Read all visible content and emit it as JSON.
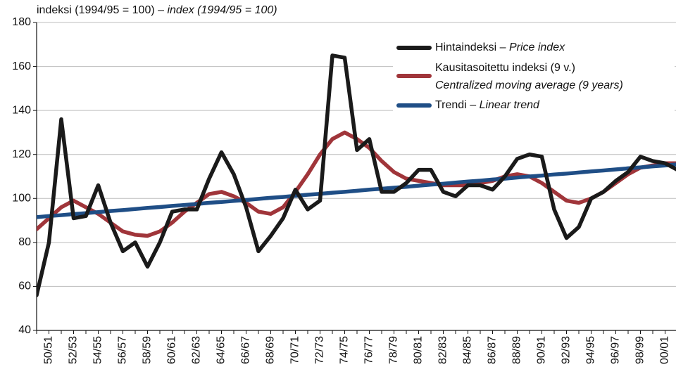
{
  "chart_data": {
    "type": "line",
    "y_label": "indeksi (1994/95 = 100) –",
    "y_label_en": "index (1994/95 = 100)",
    "categories": [
      null,
      "50/51",
      null,
      "52/53",
      null,
      "54/55",
      null,
      "56/57",
      null,
      "58/59",
      null,
      "60/61",
      null,
      "62/63",
      null,
      "64/65",
      null,
      "66/67",
      null,
      "68/69",
      null,
      "70/71",
      null,
      "72/73",
      null,
      "74/75",
      null,
      "76/77",
      null,
      "78/79",
      null,
      "80/81",
      null,
      "82/83",
      null,
      "84/85",
      null,
      "86/87",
      null,
      "88/89",
      null,
      "90/91",
      null,
      "92/93",
      null,
      "94/95",
      null,
      "96/97",
      null,
      "98/99",
      null,
      "00/01",
      null
    ],
    "series": [
      {
        "name": "Hintaindeksi –",
        "name_en": "Price index",
        "color": "#1a1a1a",
        "values": [
          56,
          80,
          136,
          91,
          92,
          106,
          89,
          76,
          80,
          69,
          80,
          94,
          95,
          95,
          109,
          121,
          111,
          96,
          76,
          83,
          91,
          104,
          95,
          99,
          165,
          164,
          122,
          127,
          103,
          103,
          107,
          113,
          113,
          103,
          101,
          106,
          106,
          104,
          110,
          118,
          120,
          119,
          95,
          82,
          87,
          100,
          103,
          108,
          112,
          119,
          117,
          116,
          113
        ]
      },
      {
        "name": "Kausitasoitettu indeksi (9 v.)",
        "name_en": "Centralized moving average (9 years)",
        "color": "#a0353a",
        "values": [
          86,
          91,
          96,
          99,
          96,
          93,
          89,
          85,
          83.5,
          83,
          85,
          89,
          94,
          98,
          102,
          103,
          101,
          98,
          94,
          93,
          96,
          103,
          111,
          120,
          127,
          130,
          127,
          123,
          117,
          112,
          109,
          108,
          107,
          106,
          106,
          106,
          107,
          108,
          110,
          111,
          110,
          107,
          103,
          99,
          98,
          100,
          103,
          107,
          111,
          114,
          115,
          116,
          116
        ]
      },
      {
        "name": "Trendi –",
        "name_en": "Linear trend",
        "color": "#1f4e86",
        "values": [
          91.5,
          92,
          92.4,
          92.9,
          93.3,
          93.8,
          94.3,
          94.7,
          95.2,
          95.7,
          96.1,
          96.6,
          97.0,
          97.5,
          98.0,
          98.4,
          98.9,
          99.3,
          99.8,
          100.3,
          100.7,
          101.2,
          101.7,
          102.1,
          102.6,
          103.0,
          103.5,
          104.0,
          104.4,
          104.9,
          105.3,
          105.8,
          106.3,
          106.7,
          107.2,
          107.7,
          108.1,
          108.6,
          109.0,
          109.5,
          110.0,
          110.4,
          110.9,
          111.3,
          111.8,
          112.3,
          112.7,
          113.2,
          113.7,
          114.1,
          114.6,
          115.0,
          115.5
        ]
      }
    ],
    "ylim": [
      40,
      180
    ],
    "yticks": [
      40,
      60,
      80,
      100,
      120,
      140,
      160,
      180
    ],
    "grid": true
  }
}
